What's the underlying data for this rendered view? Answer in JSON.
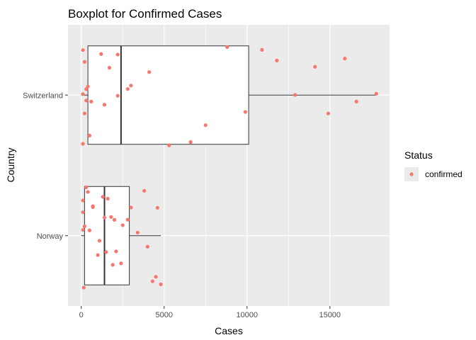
{
  "chart_data": {
    "type": "boxplot",
    "title": "Boxplot for Confirmed Cases",
    "xlabel": "Cases",
    "ylabel": "Country",
    "xlim": [
      -800,
      18600
    ],
    "x_ticks": [
      0,
      5000,
      10000,
      15000
    ],
    "x_tick_labels": [
      "0",
      "5000",
      "10000",
      "15000"
    ],
    "categories": [
      "Norway",
      "Switzerland"
    ],
    "grid": true,
    "panel_background": "#ebebeb",
    "grid_color": "#ffffff",
    "point_color": "#f8766d",
    "box_stroke": "#333333",
    "legend": {
      "title": "Status",
      "labels": [
        "confirmed"
      ],
      "placement": "right"
    },
    "boxes": [
      {
        "category": "Norway",
        "min": 0,
        "q1": 200,
        "median": 1400,
        "q3": 2900,
        "max": 4800
      },
      {
        "category": "Switzerland",
        "min": 0,
        "q1": 400,
        "median": 2400,
        "q3": 10100,
        "max": 17800
      }
    ],
    "points": [
      {
        "category": "Switzerland",
        "values": [
          100,
          600,
          1200,
          1700,
          2800,
          2200,
          100,
          500,
          1400,
          3000,
          4100,
          7500,
          9900,
          10900,
          12900,
          14100,
          14900,
          15900,
          16600,
          17800,
          11800,
          8800,
          6600,
          5300,
          2200,
          300,
          100,
          200,
          400,
          300,
          200
        ]
      },
      {
        "category": "Norway",
        "values": [
          100,
          100,
          150,
          100,
          700,
          1100,
          1400,
          1600,
          1900,
          2000,
          2800,
          3800,
          4300,
          4600,
          4500,
          3400,
          3000,
          4000,
          2500,
          2400,
          1500,
          1300,
          700,
          500,
          400,
          300,
          200,
          1000,
          2100,
          4800,
          1800
        ]
      }
    ]
  }
}
